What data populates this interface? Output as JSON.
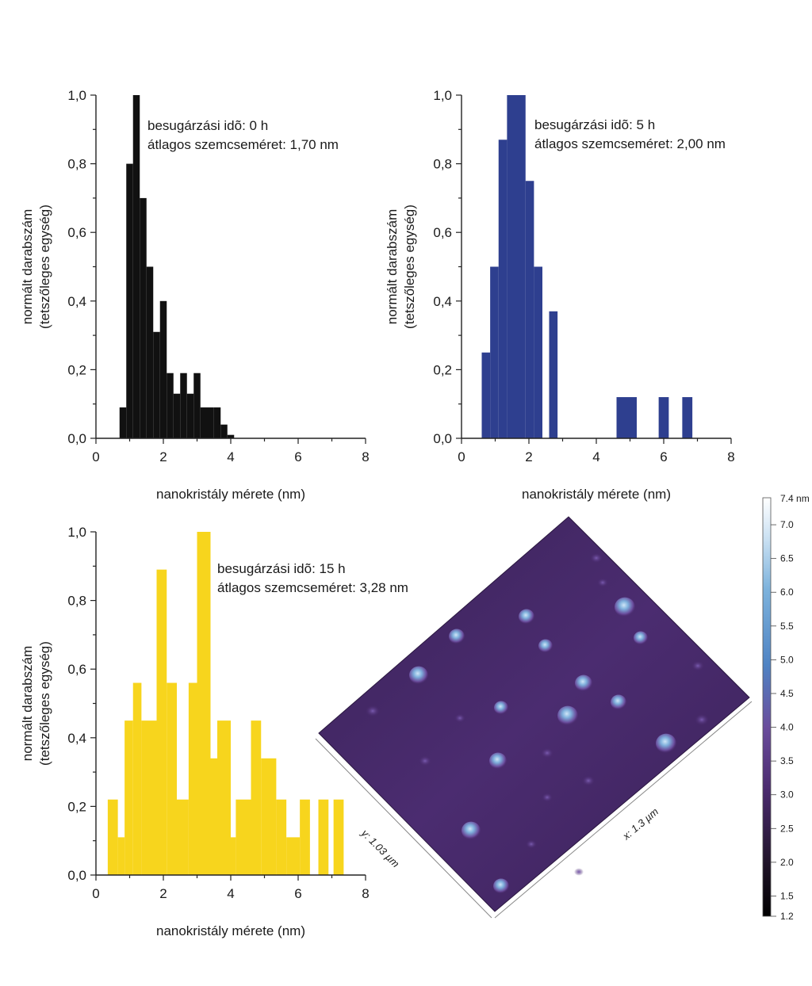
{
  "chart_data": [
    {
      "type": "bar",
      "name": "histogram-0h",
      "color": "#111111",
      "xlabel": "nanokristály mérete (nm)",
      "ylabel_line1": "normált darabszám",
      "ylabel_line2": "(tetszőleges egység)",
      "xlim": [
        0,
        8
      ],
      "ylim": [
        0,
        1
      ],
      "x_ticks": [
        "0",
        "2",
        "4",
        "6",
        "8"
      ],
      "y_ticks": [
        "0,0",
        "0,2",
        "0,4",
        "0,6",
        "0,8",
        "1,0"
      ],
      "annotation_line1": "besugárzási idõ: 0 h",
      "annotation_line2": "átlagos szemcseméret: 1,70 nm",
      "bins": [
        {
          "x0": 0.7,
          "x1": 0.9,
          "v": 0.09
        },
        {
          "x0": 0.9,
          "x1": 1.1,
          "v": 0.8
        },
        {
          "x0": 1.1,
          "x1": 1.3,
          "v": 1.0
        },
        {
          "x0": 1.3,
          "x1": 1.5,
          "v": 0.7
        },
        {
          "x0": 1.5,
          "x1": 1.7,
          "v": 0.5
        },
        {
          "x0": 1.7,
          "x1": 1.9,
          "v": 0.31
        },
        {
          "x0": 1.9,
          "x1": 2.1,
          "v": 0.4
        },
        {
          "x0": 2.1,
          "x1": 2.3,
          "v": 0.19
        },
        {
          "x0": 2.3,
          "x1": 2.5,
          "v": 0.13
        },
        {
          "x0": 2.5,
          "x1": 2.7,
          "v": 0.19
        },
        {
          "x0": 2.7,
          "x1": 2.9,
          "v": 0.13
        },
        {
          "x0": 2.9,
          "x1": 3.1,
          "v": 0.19
        },
        {
          "x0": 3.1,
          "x1": 3.5,
          "v": 0.09
        },
        {
          "x0": 3.5,
          "x1": 3.7,
          "v": 0.09
        },
        {
          "x0": 3.7,
          "x1": 3.9,
          "v": 0.04
        },
        {
          "x0": 3.9,
          "x1": 4.1,
          "v": 0.01
        }
      ]
    },
    {
      "type": "bar",
      "name": "histogram-5h",
      "color": "#2e3f8f",
      "xlabel": "nanokristály mérete (nm)",
      "ylabel_line1": "normált darabszám",
      "ylabel_line2": "(tetszőleges egység)",
      "xlim": [
        0,
        8
      ],
      "ylim": [
        0,
        1
      ],
      "x_ticks": [
        "0",
        "2",
        "4",
        "6",
        "8"
      ],
      "y_ticks": [
        "0,0",
        "0,2",
        "0,4",
        "0,6",
        "0,8",
        "1,0"
      ],
      "annotation_line1": "besugárzási idõ: 5 h",
      "annotation_line2": "átlagos szemcseméret: 2,00 nm",
      "bins": [
        {
          "x0": 0.6,
          "x1": 0.85,
          "v": 0.25
        },
        {
          "x0": 0.85,
          "x1": 1.1,
          "v": 0.5
        },
        {
          "x0": 1.1,
          "x1": 1.35,
          "v": 0.87
        },
        {
          "x0": 1.35,
          "x1": 1.9,
          "v": 1.0
        },
        {
          "x0": 1.9,
          "x1": 2.15,
          "v": 0.75
        },
        {
          "x0": 2.15,
          "x1": 2.4,
          "v": 0.5
        },
        {
          "x0": 2.6,
          "x1": 2.85,
          "v": 0.37
        },
        {
          "x0": 4.6,
          "x1": 5.2,
          "v": 0.12
        },
        {
          "x0": 5.85,
          "x1": 6.15,
          "v": 0.12
        },
        {
          "x0": 6.55,
          "x1": 6.85,
          "v": 0.12
        }
      ]
    },
    {
      "type": "bar",
      "name": "histogram-15h",
      "color": "#f7d51d",
      "xlabel": "nanokristály mérete (nm)",
      "ylabel_line1": "normált darabszám",
      "ylabel_line2": "(tetszőleges egység)",
      "xlim": [
        0,
        8
      ],
      "ylim": [
        0,
        1
      ],
      "x_ticks": [
        "0",
        "2",
        "4",
        "6",
        "8"
      ],
      "y_ticks": [
        "0,0",
        "0,2",
        "0,4",
        "0,6",
        "0,8",
        "1,0"
      ],
      "annotation_line1": "besugárzási idõ: 15 h",
      "annotation_line2": "átlagos szemcseméret: 3,28 nm",
      "bins": [
        {
          "x0": 0.35,
          "x1": 0.65,
          "v": 0.22
        },
        {
          "x0": 0.65,
          "x1": 0.85,
          "v": 0.11
        },
        {
          "x0": 0.85,
          "x1": 1.1,
          "v": 0.45
        },
        {
          "x0": 1.1,
          "x1": 1.35,
          "v": 0.56
        },
        {
          "x0": 1.35,
          "x1": 1.8,
          "v": 0.45
        },
        {
          "x0": 1.8,
          "x1": 2.1,
          "v": 0.89
        },
        {
          "x0": 2.1,
          "x1": 2.4,
          "v": 0.56
        },
        {
          "x0": 2.4,
          "x1": 2.75,
          "v": 0.22
        },
        {
          "x0": 2.75,
          "x1": 3.0,
          "v": 0.56
        },
        {
          "x0": 3.0,
          "x1": 3.4,
          "v": 1.0
        },
        {
          "x0": 3.4,
          "x1": 3.6,
          "v": 0.34
        },
        {
          "x0": 3.6,
          "x1": 4.0,
          "v": 0.45
        },
        {
          "x0": 4.0,
          "x1": 4.15,
          "v": 0.11
        },
        {
          "x0": 4.15,
          "x1": 4.6,
          "v": 0.22
        },
        {
          "x0": 4.6,
          "x1": 4.9,
          "v": 0.45
        },
        {
          "x0": 4.9,
          "x1": 5.35,
          "v": 0.34
        },
        {
          "x0": 5.35,
          "x1": 5.65,
          "v": 0.22
        },
        {
          "x0": 5.65,
          "x1": 6.05,
          "v": 0.11
        },
        {
          "x0": 6.05,
          "x1": 6.35,
          "v": 0.22
        },
        {
          "x0": 6.6,
          "x1": 6.9,
          "v": 0.22
        },
        {
          "x0": 7.05,
          "x1": 7.35,
          "v": 0.22
        }
      ]
    }
  ],
  "afm_image": {
    "x_label": "x: 1.3 µm",
    "y_label": "y: 1.03 µm",
    "surface_color": "#4a2a6e",
    "colorbar_top_label": "7.4 nm",
    "colorbar_labels": [
      "7.0",
      "6.5",
      "6.0",
      "5.5",
      "5.0",
      "4.5",
      "4.0",
      "3.5",
      "3.0",
      "2.5",
      "2.0",
      "1.5",
      "1.2"
    ],
    "colorbar_values": [
      7.0,
      6.5,
      6.0,
      5.5,
      5.0,
      4.5,
      4.0,
      3.5,
      3.0,
      2.5,
      2.0,
      1.5,
      1.2
    ],
    "colorbar_range": [
      1.2,
      7.4
    ]
  }
}
